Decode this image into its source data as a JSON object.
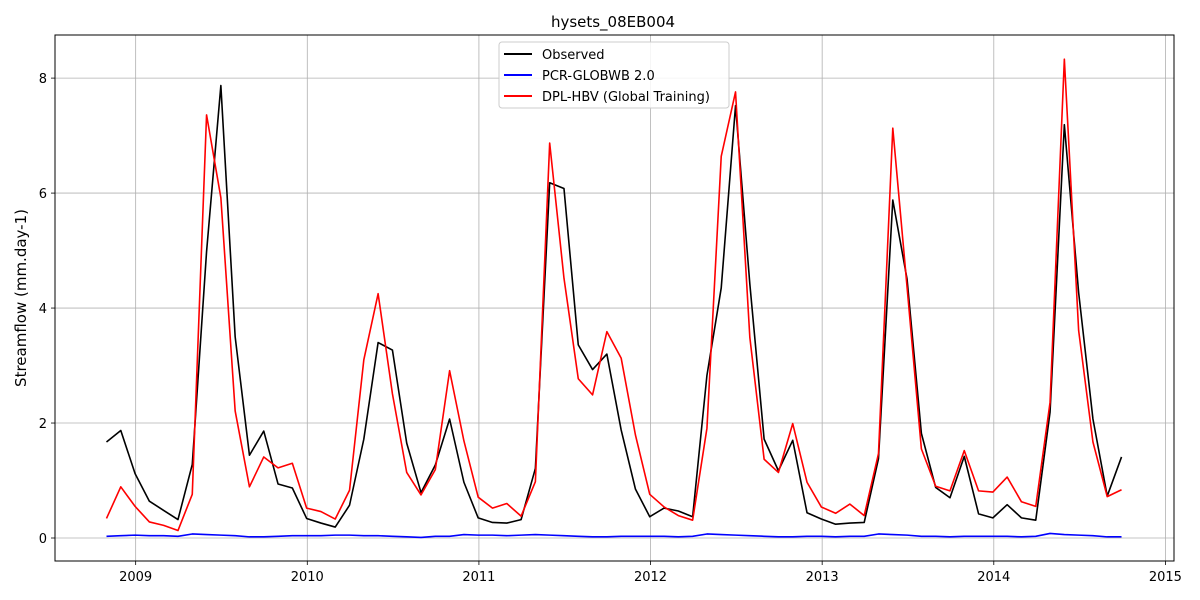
{
  "chart_data": {
    "type": "line",
    "title": "hysets_08EB004",
    "xlabel": "",
    "ylabel": "Streamflow (mm.day-1)",
    "xlim": [
      2008.53,
      2015.05
    ],
    "ylim": [
      -0.4,
      8.75
    ],
    "x_ticks": [
      2009,
      2010,
      2011,
      2012,
      2013,
      2014,
      2015
    ],
    "x_tick_labels": [
      "2009",
      "2010",
      "2011",
      "2012",
      "2013",
      "2014",
      "2015"
    ],
    "y_ticks": [
      0,
      2,
      4,
      6,
      8
    ],
    "y_tick_labels": [
      "0",
      "2",
      "4",
      "6",
      "8"
    ],
    "grid": true,
    "legend_position": "top-center",
    "x_start": 2008.83,
    "x_step": 0.0833,
    "series": [
      {
        "name": "Observed",
        "color": "#000000",
        "values": [
          1.67,
          1.87,
          1.12,
          0.64,
          0.48,
          0.32,
          1.28,
          4.98,
          7.87,
          3.5,
          1.44,
          1.86,
          0.94,
          0.87,
          0.34,
          0.26,
          0.19,
          0.57,
          1.72,
          3.4,
          3.27,
          1.65,
          0.79,
          1.27,
          2.07,
          0.97,
          0.35,
          0.27,
          0.26,
          0.32,
          1.21,
          6.18,
          6.08,
          3.36,
          2.93,
          3.2,
          1.88,
          0.85,
          0.37,
          0.52,
          0.47,
          0.37,
          2.83,
          4.35,
          7.52,
          4.42,
          1.72,
          1.17,
          1.7,
          0.44,
          0.33,
          0.24,
          0.26,
          0.27,
          1.38,
          5.88,
          4.5,
          1.82,
          0.88,
          0.7,
          1.42,
          0.42,
          0.35,
          0.58,
          0.35,
          0.31,
          2.19,
          7.19,
          4.27,
          2.07,
          0.73,
          1.41
        ]
      },
      {
        "name": "PCR-GLOBWB 2.0",
        "color": "#0000ff",
        "values": [
          0.03,
          0.04,
          0.05,
          0.04,
          0.04,
          0.03,
          0.07,
          0.06,
          0.05,
          0.04,
          0.02,
          0.02,
          0.03,
          0.04,
          0.04,
          0.04,
          0.05,
          0.05,
          0.04,
          0.04,
          0.03,
          0.02,
          0.01,
          0.03,
          0.03,
          0.06,
          0.05,
          0.05,
          0.04,
          0.05,
          0.06,
          0.05,
          0.04,
          0.03,
          0.02,
          0.02,
          0.03,
          0.03,
          0.03,
          0.03,
          0.02,
          0.03,
          0.07,
          0.06,
          0.05,
          0.04,
          0.03,
          0.02,
          0.02,
          0.03,
          0.03,
          0.02,
          0.03,
          0.03,
          0.07,
          0.06,
          0.05,
          0.03,
          0.03,
          0.02,
          0.03,
          0.03,
          0.03,
          0.03,
          0.02,
          0.03,
          0.08,
          0.06,
          0.05,
          0.04,
          0.02,
          0.02
        ]
      },
      {
        "name": "DPL-HBV (Global Training)",
        "color": "#ff0000",
        "values": [
          0.34,
          0.89,
          0.55,
          0.28,
          0.22,
          0.13,
          0.76,
          7.36,
          5.92,
          2.21,
          0.89,
          1.41,
          1.22,
          1.3,
          0.52,
          0.46,
          0.33,
          0.83,
          3.1,
          4.25,
          2.51,
          1.14,
          0.75,
          1.19,
          2.91,
          1.69,
          0.71,
          0.52,
          0.6,
          0.38,
          0.98,
          6.87,
          4.52,
          2.77,
          2.49,
          3.59,
          3.13,
          1.79,
          0.76,
          0.54,
          0.39,
          0.31,
          1.91,
          6.64,
          7.76,
          3.49,
          1.37,
          1.14,
          1.99,
          0.97,
          0.54,
          0.43,
          0.59,
          0.39,
          1.47,
          7.13,
          4.36,
          1.55,
          0.9,
          0.82,
          1.52,
          0.82,
          0.8,
          1.06,
          0.63,
          0.55,
          2.36,
          8.33,
          3.61,
          1.67,
          0.72,
          0.84
        ]
      }
    ]
  }
}
